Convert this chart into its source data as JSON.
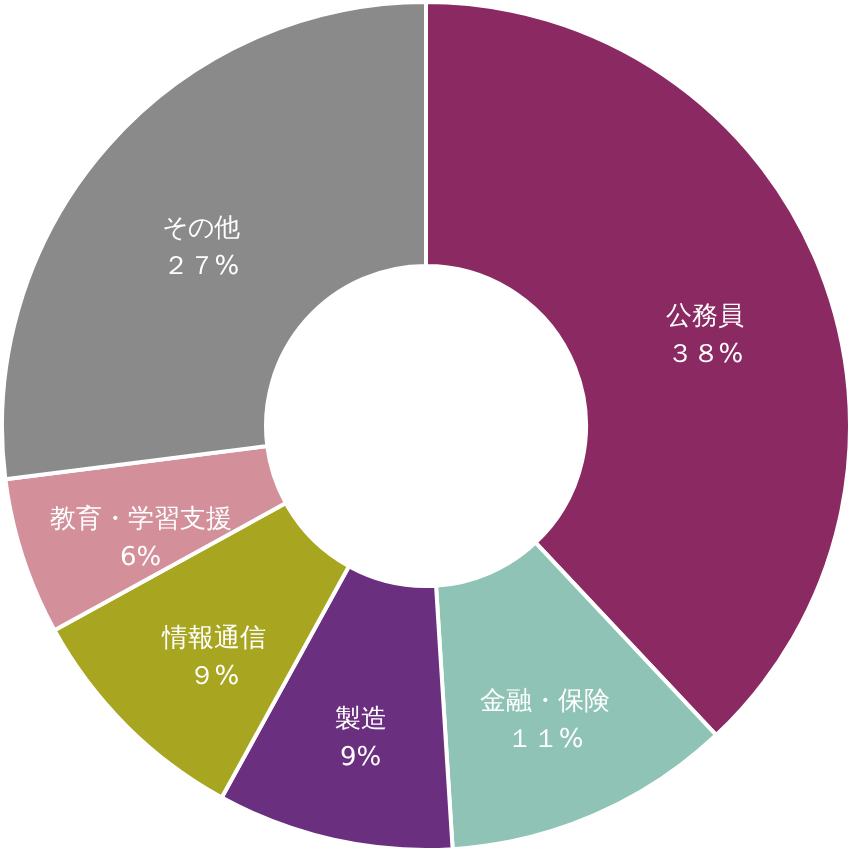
{
  "chart_data": {
    "type": "donut",
    "categories": [
      "公務員",
      "金融・保険",
      "製造",
      "情報通信",
      "教育・学習支援",
      "その他"
    ],
    "values": [
      38,
      11,
      9,
      9,
      6,
      27
    ],
    "value_labels": [
      "３８%",
      "１１%",
      "9%",
      "９%",
      "6%",
      "２７%"
    ],
    "colors": [
      "#8b2a62",
      "#8fc3b5",
      "#6b2f7f",
      "#a8a520",
      "#d4909a",
      "#8a8a8a"
    ]
  }
}
